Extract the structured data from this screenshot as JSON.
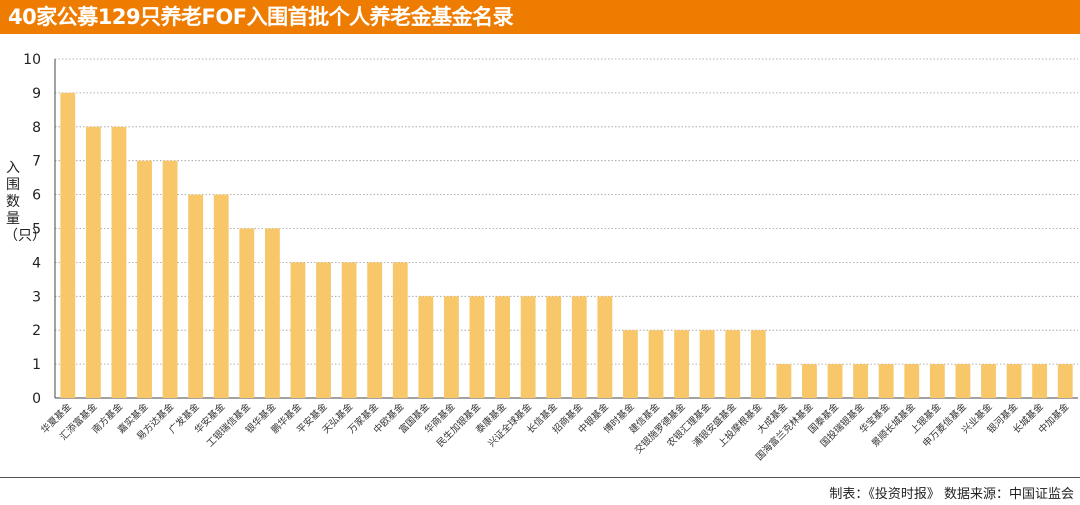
{
  "header": {
    "title": "40家公募129只养老FOF入围首批个人养老金基金名录"
  },
  "footer": {
    "source": "制表：《投资时报》 数据来源：中国证监会"
  },
  "chart_data": {
    "type": "bar",
    "title": "40家公募129只养老FOF入围首批个人养老金基金名录",
    "xlabel": "",
    "ylabel": "入围数量（只）",
    "ylim": [
      0,
      10
    ],
    "yticks": [
      0,
      1,
      2,
      3,
      4,
      5,
      6,
      7,
      8,
      9,
      10
    ],
    "grid": true,
    "bar_color": "#f7c76a",
    "categories": [
      "华夏基金",
      "汇添富基金",
      "南方基金",
      "嘉实基金",
      "易方达基金",
      "广发基金",
      "华安基金",
      "工银瑞信基金",
      "银华基金",
      "鹏华基金",
      "平安基金",
      "天弘基金",
      "万家基金",
      "中欧基金",
      "富国基金",
      "华商基金",
      "民生加银基金",
      "泰康基金",
      "兴证全球基金",
      "长信基金",
      "招商基金",
      "中银基金",
      "博时基金",
      "建信基金",
      "交银施罗德基金",
      "农银汇理基金",
      "浦银安盛基金",
      "上投摩根基金",
      "大成基金",
      "国海富兰克林基金",
      "国泰基金",
      "国投瑞银基金",
      "华宝基金",
      "景顺长城基金",
      "上银基金",
      "申万菱信基金",
      "兴业基金",
      "银河基金",
      "长城基金",
      "中加基金"
    ],
    "values": [
      9,
      8,
      8,
      7,
      7,
      6,
      6,
      5,
      5,
      4,
      4,
      4,
      4,
      4,
      3,
      3,
      3,
      3,
      3,
      3,
      3,
      3,
      2,
      2,
      2,
      2,
      2,
      2,
      1,
      1,
      1,
      1,
      1,
      1,
      1,
      1,
      1,
      1,
      1,
      1
    ]
  }
}
